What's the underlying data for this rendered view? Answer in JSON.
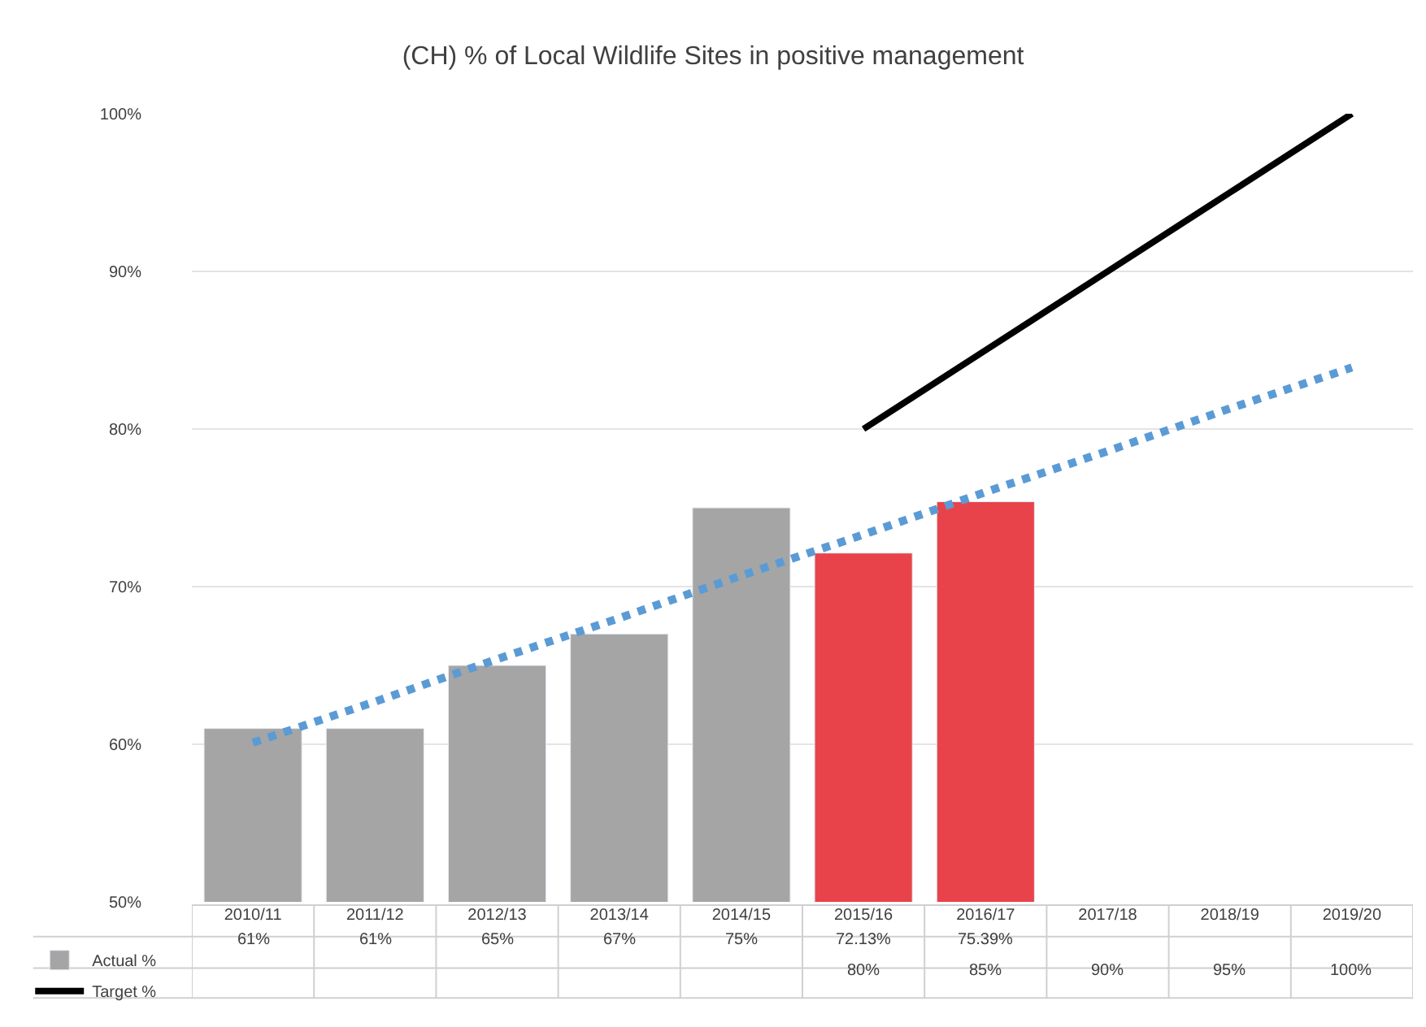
{
  "chart_data": {
    "type": "bar",
    "title": "(CH) % of Local Wildlife Sites in positive management",
    "categories": [
      "2010/11",
      "2011/12",
      "2012/13",
      "2013/14",
      "2014/15",
      "2015/16",
      "2016/17",
      "2017/18",
      "2018/19",
      "2019/20"
    ],
    "series": [
      {
        "name": "Actual %",
        "colors": [
          "#a5a5a5",
          "#a5a5a5",
          "#a5a5a5",
          "#a5a5a5",
          "#a5a5a5",
          "#e8434a",
          "#e8434a",
          null,
          null,
          null
        ],
        "values": [
          61,
          61,
          65,
          67,
          75,
          72.13,
          75.39,
          null,
          null,
          null
        ],
        "value_labels": [
          "61%",
          "61%",
          "65%",
          "67%",
          "75%",
          "72.13%",
          "75.39%",
          null,
          null,
          null
        ]
      },
      {
        "name": "Target %",
        "type": "line",
        "color": "#000000",
        "line_style": "solid",
        "values": [
          null,
          null,
          null,
          null,
          null,
          80,
          85,
          90,
          95,
          100
        ],
        "value_labels": [
          null,
          null,
          null,
          null,
          null,
          "80%",
          "85%",
          "90%",
          "95%",
          "100%"
        ]
      },
      {
        "type": "line",
        "color": "#5b9bd5",
        "line_style": "dotted",
        "values": [
          60.1,
          62.7,
          65.4,
          68.0,
          70.7,
          73.3,
          76.0,
          78.6,
          81.3,
          83.9
        ]
      }
    ],
    "ylim": [
      50,
      100
    ],
    "yticks": [
      {
        "value": 50,
        "label": "50%"
      },
      {
        "value": 60,
        "label": "60%"
      },
      {
        "value": 70,
        "label": "70%"
      },
      {
        "value": 80,
        "label": "80%"
      },
      {
        "value": 90,
        "label": "90%"
      },
      {
        "value": 100,
        "label": "100%"
      }
    ],
    "grid": "y",
    "legend": "bottom"
  }
}
